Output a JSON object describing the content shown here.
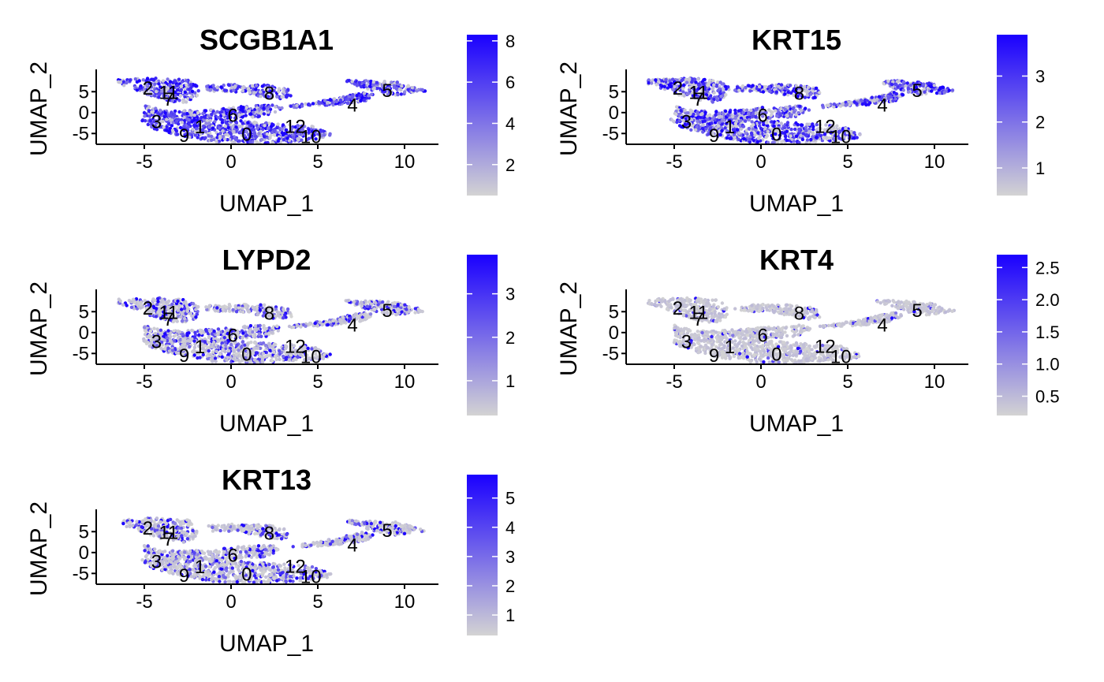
{
  "chart_data": [
    {
      "type": "scatter",
      "title": "SCGB1A1",
      "xlabel": "UMAP_1",
      "ylabel": "UMAP_2",
      "xlim": [
        -8,
        12
      ],
      "ylim": [
        -8,
        9
      ],
      "x_ticks": [
        "-5",
        "0",
        "5",
        "10"
      ],
      "y_ticks": [
        "5",
        "0",
        "-5"
      ],
      "color_low": "#d3d3d3",
      "color_high": "#1a00ff",
      "colorbar_range": [
        0.5,
        8.3
      ],
      "colorbar_ticks": [
        "2",
        "4",
        "6",
        "8"
      ],
      "expression_level": 0.75,
      "cluster_labels": [
        "2",
        "11",
        "7",
        "8",
        "5",
        "4",
        "3",
        "1",
        "6",
        "12",
        "9",
        "0",
        "10"
      ]
    },
    {
      "type": "scatter",
      "title": "KRT15",
      "xlabel": "UMAP_1",
      "ylabel": "UMAP_2",
      "xlim": [
        -8,
        12
      ],
      "ylim": [
        -8,
        9
      ],
      "x_ticks": [
        "-5",
        "0",
        "5",
        "10"
      ],
      "y_ticks": [
        "5",
        "0",
        "-5"
      ],
      "color_low": "#d3d3d3",
      "color_high": "#1a00ff",
      "colorbar_range": [
        0.4,
        3.9
      ],
      "colorbar_ticks": [
        "1",
        "2",
        "3"
      ],
      "expression_level": 0.65,
      "cluster_labels": [
        "2",
        "11",
        "7",
        "8",
        "5",
        "4",
        "3",
        "1",
        "6",
        "12",
        "9",
        "0",
        "10"
      ]
    },
    {
      "type": "scatter",
      "title": "LYPD2",
      "xlabel": "UMAP_1",
      "ylabel": "UMAP_2",
      "xlim": [
        -8,
        12
      ],
      "ylim": [
        -8,
        9
      ],
      "x_ticks": [
        "-5",
        "0",
        "5",
        "10"
      ],
      "y_ticks": [
        "5",
        "0",
        "-5"
      ],
      "color_low": "#d3d3d3",
      "color_high": "#1a00ff",
      "colorbar_range": [
        0.2,
        3.9
      ],
      "colorbar_ticks": [
        "1",
        "2",
        "3"
      ],
      "expression_level": 0.35,
      "cluster_labels": [
        "2",
        "11",
        "7",
        "8",
        "5",
        "4",
        "3",
        "1",
        "6",
        "12",
        "9",
        "0",
        "10"
      ]
    },
    {
      "type": "scatter",
      "title": "KRT4",
      "xlabel": "UMAP_1",
      "ylabel": "UMAP_2",
      "xlim": [
        -8,
        12
      ],
      "ylim": [
        -8,
        9
      ],
      "x_ticks": [
        "-5",
        "0",
        "5",
        "10"
      ],
      "y_ticks": [
        "5",
        "0",
        "-5"
      ],
      "color_low": "#d3d3d3",
      "color_high": "#1a00ff",
      "colorbar_range": [
        0.2,
        2.7
      ],
      "colorbar_ticks": [
        "0.5",
        "1.0",
        "1.5",
        "2.0",
        "2.5"
      ],
      "expression_level": 0.08,
      "cluster_labels": [
        "2",
        "11",
        "7",
        "8",
        "5",
        "4",
        "3",
        "1",
        "6",
        "12",
        "9",
        "0",
        "10"
      ]
    },
    {
      "type": "scatter",
      "title": "KRT13",
      "xlabel": "UMAP_1",
      "ylabel": "UMAP_2",
      "xlim": [
        -8,
        12
      ],
      "ylim": [
        -8,
        9
      ],
      "x_ticks": [
        "-5",
        "0",
        "5",
        "10"
      ],
      "y_ticks": [
        "5",
        "0",
        "-5"
      ],
      "color_low": "#d3d3d3",
      "color_high": "#1a00ff",
      "colorbar_range": [
        0.3,
        5.8
      ],
      "colorbar_ticks": [
        "1",
        "2",
        "3",
        "4",
        "5"
      ],
      "expression_level": 0.3,
      "cluster_labels": [
        "2",
        "11",
        "7",
        "8",
        "5",
        "4",
        "3",
        "1",
        "6",
        "12",
        "9",
        "0",
        "10"
      ]
    }
  ]
}
